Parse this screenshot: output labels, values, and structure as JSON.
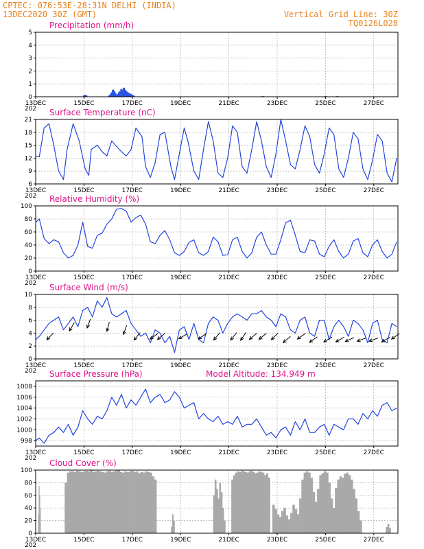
{
  "header": {
    "line1": "CPTEC:  076:53E-28:31N  DELHI (INDIA)",
    "line2": "13DEC2020 30Z (GMT)",
    "right1": "Vertical Grid Line: 30Z",
    "right2": "TQ0126L028"
  },
  "colors": {
    "header": "#e8801a",
    "title": "#e0138a",
    "line": "#2244dd",
    "bar": "#2a52e0",
    "cloud": "#a9a9a9"
  },
  "x_axis": {
    "labels": [
      "13DEC",
      "15DEC",
      "17DEC",
      "19DEC",
      "21DEC",
      "23DEC",
      "25DEC",
      "27DEC"
    ],
    "range_days": [
      0,
      15
    ],
    "year_fragment": "202"
  },
  "chart_data": [
    {
      "type": "bar",
      "title": "Precipitation (mm/h)",
      "ylim": [
        0,
        5
      ],
      "yticks": [
        "0",
        "1",
        "2",
        "3",
        "4",
        "5"
      ],
      "x": [
        2.0,
        2.05,
        2.1,
        3.05,
        3.1,
        3.15,
        3.2,
        3.25,
        3.3,
        3.35,
        3.4,
        3.45,
        3.5,
        3.55,
        3.6,
        3.65,
        3.7,
        3.75,
        3.8,
        3.85,
        3.9,
        3.95,
        4.0,
        4.05,
        9.4,
        12.0,
        12.5
      ],
      "values": [
        0.1,
        0.15,
        0.1,
        0.1,
        0.2,
        0.35,
        0.55,
        0.45,
        0.3,
        0.15,
        0.2,
        0.35,
        0.45,
        0.6,
        0.5,
        0.7,
        0.55,
        0.45,
        0.35,
        0.3,
        0.25,
        0.2,
        0.15,
        0.1,
        0.05,
        0.05,
        0.05
      ]
    },
    {
      "type": "line",
      "title": "Surface Temperature (nC)",
      "ylim": [
        6,
        21
      ],
      "yticks": [
        "6",
        "9",
        "12",
        "15",
        "18",
        "21"
      ],
      "x": [
        0,
        0.15,
        0.35,
        0.55,
        0.75,
        0.95,
        1.15,
        1.3,
        1.55,
        1.8,
        2.05,
        2.2,
        2.3,
        2.55,
        2.75,
        2.95,
        3.15,
        3.3,
        3.55,
        3.75,
        3.95,
        4.15,
        4.4,
        4.55,
        4.75,
        4.95,
        5.15,
        5.35,
        5.6,
        5.75,
        5.95,
        6.15,
        6.3,
        6.55,
        6.75,
        6.95,
        7.15,
        7.35,
        7.55,
        7.75,
        7.95,
        8.15,
        8.35,
        8.55,
        8.75,
        8.95,
        9.15,
        9.35,
        9.55,
        9.75,
        9.95,
        10.15,
        10.35,
        10.55,
        10.75,
        10.95,
        11.15,
        11.35,
        11.55,
        11.75,
        11.95,
        12.15,
        12.35,
        12.55,
        12.75,
        12.95,
        13.15,
        13.35,
        13.55,
        13.75,
        13.95,
        14.15,
        14.35,
        14.55,
        14.75,
        14.95
      ],
      "y": [
        12.5,
        12.3,
        19.0,
        20.0,
        15.0,
        9.0,
        7.0,
        14.0,
        20.0,
        16.0,
        9.5,
        8.0,
        14.0,
        15.0,
        13.5,
        12.5,
        16.0,
        15.0,
        13.5,
        12.5,
        14.0,
        19.0,
        17.0,
        10.0,
        7.5,
        11.0,
        17.5,
        18.0,
        10.0,
        7.0,
        13.0,
        19.0,
        16.0,
        9.0,
        7.0,
        14.0,
        20.5,
        16.0,
        8.5,
        7.5,
        12.0,
        19.5,
        18.0,
        10.0,
        8.5,
        14.0,
        20.5,
        16.0,
        10.0,
        7.5,
        13.0,
        21.0,
        16.0,
        10.5,
        9.5,
        14.0,
        19.5,
        17.0,
        10.5,
        8.5,
        13.0,
        19.0,
        17.5,
        9.5,
        7.5,
        12.0,
        18.0,
        16.5,
        9.5,
        7.0,
        11.5,
        17.5,
        16.0,
        8.5,
        6.5,
        12.0
      ]
    },
    {
      "type": "line",
      "title": "Relative Humidity (%)",
      "ylim": [
        0,
        100
      ],
      "yticks": [
        "0",
        "20",
        "40",
        "60",
        "80",
        "100"
      ],
      "x": [
        0,
        0.15,
        0.35,
        0.55,
        0.75,
        0.95,
        1.15,
        1.35,
        1.55,
        1.75,
        1.95,
        2.15,
        2.35,
        2.55,
        2.75,
        2.95,
        3.15,
        3.35,
        3.55,
        3.75,
        3.95,
        4.15,
        4.35,
        4.55,
        4.75,
        4.95,
        5.15,
        5.35,
        5.55,
        5.75,
        5.95,
        6.15,
        6.35,
        6.55,
        6.75,
        6.95,
        7.15,
        7.35,
        7.55,
        7.75,
        7.95,
        8.15,
        8.35,
        8.55,
        8.75,
        8.95,
        9.15,
        9.35,
        9.55,
        9.75,
        9.95,
        10.15,
        10.35,
        10.55,
        10.75,
        10.95,
        11.15,
        11.35,
        11.55,
        11.75,
        11.95,
        12.15,
        12.35,
        12.55,
        12.75,
        12.95,
        13.15,
        13.35,
        13.55,
        13.75,
        13.95,
        14.15,
        14.35,
        14.55,
        14.75,
        14.95
      ],
      "y": [
        75,
        80,
        50,
        42,
        48,
        45,
        28,
        20,
        24,
        40,
        75,
        38,
        35,
        55,
        58,
        72,
        80,
        95,
        96,
        92,
        75,
        82,
        86,
        72,
        45,
        42,
        55,
        62,
        48,
        28,
        24,
        30,
        44,
        48,
        28,
        24,
        30,
        52,
        45,
        24,
        25,
        48,
        52,
        30,
        20,
        28,
        52,
        60,
        40,
        26,
        26,
        48,
        74,
        78,
        55,
        30,
        28,
        48,
        46,
        26,
        22,
        38,
        48,
        30,
        20,
        26,
        46,
        50,
        28,
        22,
        40,
        48,
        30,
        20,
        26,
        45
      ]
    },
    {
      "type": "line",
      "title": "Surface Wind (m/s)",
      "ylim": [
        0,
        10
      ],
      "yticks": [
        "0",
        "2",
        "4",
        "6",
        "8",
        "10"
      ],
      "x": [
        0,
        0.15,
        0.35,
        0.55,
        0.75,
        0.95,
        1.15,
        1.35,
        1.55,
        1.75,
        1.95,
        2.15,
        2.35,
        2.55,
        2.75,
        2.95,
        3.15,
        3.35,
        3.55,
        3.75,
        3.95,
        4.15,
        4.35,
        4.55,
        4.75,
        4.95,
        5.15,
        5.35,
        5.55,
        5.75,
        5.95,
        6.15,
        6.35,
        6.55,
        6.75,
        6.95,
        7.15,
        7.35,
        7.55,
        7.75,
        7.95,
        8.15,
        8.35,
        8.55,
        8.75,
        8.95,
        9.15,
        9.35,
        9.55,
        9.75,
        9.95,
        10.15,
        10.35,
        10.55,
        10.75,
        10.95,
        11.15,
        11.35,
        11.55,
        11.75,
        11.95,
        12.15,
        12.35,
        12.55,
        12.75,
        12.95,
        13.15,
        13.35,
        13.55,
        13.75,
        13.95,
        14.15,
        14.35,
        14.55,
        14.75,
        14.95
      ],
      "y": [
        3.0,
        3.5,
        4.5,
        5.5,
        6.0,
        6.5,
        4.5,
        5.5,
        6.5,
        5.0,
        7.5,
        8.0,
        6.5,
        9.0,
        8.0,
        9.5,
        7.0,
        6.5,
        7.0,
        7.5,
        5.5,
        4.5,
        3.5,
        4.0,
        2.5,
        4.5,
        4.0,
        2.5,
        3.5,
        1.0,
        4.5,
        5.0,
        3.0,
        5.5,
        3.0,
        2.5,
        5.5,
        6.5,
        6.0,
        4.0,
        5.5,
        6.5,
        7.0,
        6.5,
        6.0,
        7.0,
        7.0,
        7.5,
        6.5,
        6.0,
        5.0,
        7.0,
        6.5,
        4.5,
        4.0,
        6.0,
        6.5,
        4.0,
        3.5,
        6.0,
        6.0,
        3.0,
        5.0,
        6.0,
        5.0,
        3.5,
        6.0,
        5.5,
        4.5,
        2.5,
        5.5,
        6.0,
        3.0,
        2.5,
        5.5,
        5.0
      ],
      "arrows_x": [
        0.6,
        1.5,
        2.2,
        3.0,
        3.7,
        4.2,
        4.9,
        5.2,
        6.1,
        6.9,
        7.5,
        8.2,
        8.6,
        9.0,
        9.4,
        9.9,
        10.4,
        11.0,
        11.5,
        12.1,
        12.6,
        13.0,
        13.5,
        14.0,
        14.5,
        14.9
      ],
      "arrows_dir_deg": [
        225,
        240,
        250,
        255,
        250,
        230,
        215,
        220,
        210,
        215,
        230,
        230,
        235,
        220,
        220,
        225,
        220,
        215,
        215,
        210,
        210,
        205,
        200,
        200,
        210,
        215
      ],
      "arrows_y": [
        3.5,
        5.0,
        5.5,
        5.0,
        4.5,
        3.5,
        3.5,
        3.5,
        3.5,
        3.5,
        3.5,
        3.5,
        3.5,
        3.5,
        3.5,
        3.5,
        3.0,
        3.5,
        3.0,
        3.0,
        3.0,
        3.0,
        3.0,
        3.0,
        3.0,
        3.5
      ]
    },
    {
      "type": "line",
      "title": "Surface Pressure (hPa)",
      "annotation": "Model Altitude: 134.949 m",
      "ylim": [
        997,
        1009
      ],
      "yticks": [
        "998",
        "1000",
        "1002",
        "1004",
        "1006",
        "1008"
      ],
      "x": [
        0,
        0.15,
        0.35,
        0.55,
        0.75,
        0.95,
        1.15,
        1.35,
        1.55,
        1.75,
        1.95,
        2.15,
        2.35,
        2.55,
        2.75,
        2.95,
        3.15,
        3.35,
        3.55,
        3.75,
        3.95,
        4.15,
        4.35,
        4.55,
        4.75,
        4.95,
        5.15,
        5.35,
        5.55,
        5.75,
        5.95,
        6.15,
        6.35,
        6.55,
        6.75,
        6.95,
        7.15,
        7.35,
        7.55,
        7.75,
        7.95,
        8.15,
        8.35,
        8.55,
        8.75,
        8.95,
        9.15,
        9.35,
        9.55,
        9.75,
        9.95,
        10.15,
        10.35,
        10.55,
        10.75,
        10.95,
        11.15,
        11.35,
        11.55,
        11.75,
        11.95,
        12.15,
        12.35,
        12.55,
        12.75,
        12.95,
        13.15,
        13.35,
        13.55,
        13.75,
        13.95,
        14.15,
        14.35,
        14.55,
        14.75,
        14.95
      ],
      "y": [
        998,
        998.5,
        997.5,
        999,
        999.5,
        1000.5,
        999.5,
        1001,
        999,
        1000.5,
        1003.5,
        1002,
        1001,
        1002.5,
        1002,
        1003.5,
        1006,
        1004.5,
        1006.5,
        1004,
        1005.5,
        1004.5,
        1006,
        1007.5,
        1005,
        1006,
        1006.5,
        1005,
        1005.5,
        1007,
        1006,
        1004,
        1004.5,
        1005,
        1002,
        1003,
        1002,
        1001.5,
        1002.5,
        1001,
        1001.5,
        1001,
        1002.5,
        1000.5,
        1001,
        1001,
        1002,
        1000.5,
        999,
        999.5,
        998.5,
        1000,
        1000.5,
        999,
        1001.5,
        1000,
        1002,
        999.5,
        999.5,
        1000.5,
        1001,
        999,
        1001,
        1000.5,
        1000,
        1002,
        1002,
        1001,
        1003,
        1002,
        1003.5,
        1002.5,
        1004.5,
        1005,
        1003.5,
        1004
      ]
    },
    {
      "type": "bar",
      "title": "Cloud Cover (%)",
      "ylim": [
        0,
        100
      ],
      "yticks": [
        "0",
        "20",
        "40",
        "60",
        "80",
        "100"
      ],
      "segments": [
        {
          "start": 0.1,
          "end": 0.2,
          "values": [
            30,
            75,
            60,
            40
          ]
        },
        {
          "start": 1.2,
          "end": 5.0,
          "values": [
            80,
            96,
            98,
            98,
            97,
            99,
            98,
            97,
            98,
            99,
            98,
            100,
            97,
            98,
            99,
            98,
            97,
            96,
            98,
            99,
            97,
            98,
            99,
            100,
            97,
            96,
            98,
            97,
            98,
            99,
            97,
            98,
            95,
            97,
            96,
            98,
            97,
            96,
            90,
            85
          ]
        },
        {
          "start": 5.6,
          "end": 5.75,
          "values": [
            10,
            30,
            20
          ]
        },
        {
          "start": 7.35,
          "end": 7.85,
          "values": [
            60,
            85,
            70,
            55,
            80,
            65,
            40,
            20
          ]
        },
        {
          "start": 8.1,
          "end": 9.7,
          "values": [
            85,
            92,
            96,
            98,
            97,
            99,
            98,
            97,
            96,
            98,
            99,
            97,
            95,
            96,
            98,
            97,
            96,
            92,
            95,
            88
          ]
        },
        {
          "start": 9.8,
          "end": 13.5,
          "values": [
            45,
            38,
            30,
            26,
            35,
            40,
            28,
            22,
            32,
            45,
            38,
            30,
            55,
            85,
            96,
            98,
            96,
            88,
            65,
            50,
            70,
            92,
            95,
            98,
            96,
            80,
            55,
            40,
            72,
            85,
            90,
            88,
            94,
            96,
            92,
            85,
            70,
            55,
            35,
            20
          ]
        },
        {
          "start": 14.5,
          "end": 14.7,
          "values": [
            10,
            15,
            8
          ]
        }
      ]
    }
  ]
}
